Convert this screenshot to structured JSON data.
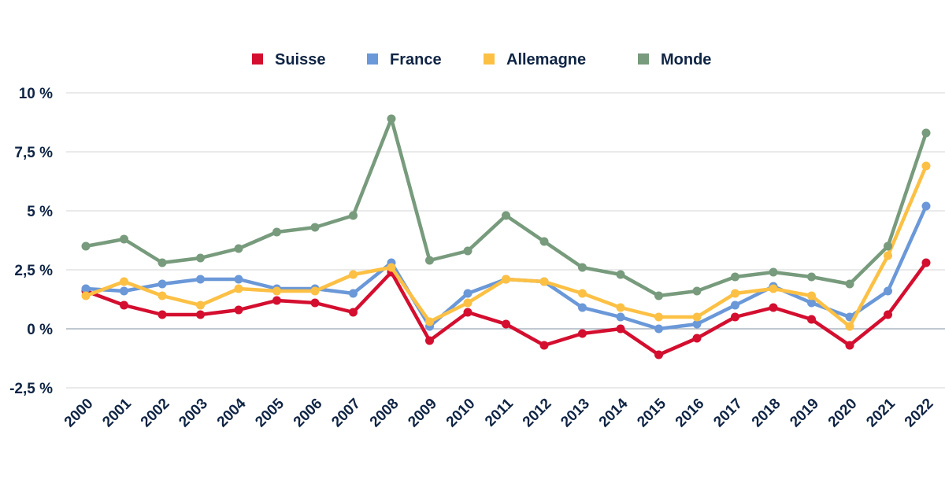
{
  "chart_data": {
    "type": "line",
    "title": "",
    "xlabel": "",
    "ylabel": "",
    "x": [
      "2000",
      "2001",
      "2002",
      "2003",
      "2004",
      "2005",
      "2006",
      "2007",
      "2008",
      "2009",
      "2010",
      "2011",
      "2012",
      "2013",
      "2014",
      "2015",
      "2016",
      "2017",
      "2018",
      "2019",
      "2020",
      "2021",
      "2022"
    ],
    "ylim": [
      -2.5,
      10
    ],
    "yticks": [
      -2.5,
      0,
      2.5,
      5,
      7.5,
      10
    ],
    "ytick_labels": [
      "-2,5 %",
      "0 %",
      "2,5 %",
      "5 %",
      "7,5 %",
      "10 %"
    ],
    "grid": true,
    "legend_position": "top",
    "series": [
      {
        "name": "Suisse",
        "color": "#d40e2f",
        "values": [
          1.6,
          1.0,
          0.6,
          0.6,
          0.8,
          1.2,
          1.1,
          0.7,
          2.4,
          -0.5,
          0.7,
          0.2,
          -0.7,
          -0.2,
          0.0,
          -1.1,
          -0.4,
          0.5,
          0.9,
          0.4,
          -0.7,
          0.6,
          2.8
        ]
      },
      {
        "name": "France",
        "color": "#6a98d8",
        "values": [
          1.7,
          1.6,
          1.9,
          2.1,
          2.1,
          1.7,
          1.7,
          1.5,
          2.8,
          0.1,
          1.5,
          2.1,
          2.0,
          0.9,
          0.5,
          0.0,
          0.2,
          1.0,
          1.8,
          1.1,
          0.5,
          1.6,
          5.2
        ]
      },
      {
        "name": "Allemagne",
        "color": "#fcc044",
        "values": [
          1.4,
          2.0,
          1.4,
          1.0,
          1.7,
          1.6,
          1.6,
          2.3,
          2.6,
          0.3,
          1.1,
          2.1,
          2.0,
          1.5,
          0.9,
          0.5,
          0.5,
          1.5,
          1.7,
          1.4,
          0.1,
          3.1,
          6.9
        ]
      },
      {
        "name": "Monde",
        "color": "#779b7c",
        "values": [
          3.5,
          3.8,
          2.8,
          3.0,
          3.4,
          4.1,
          4.3,
          4.8,
          8.9,
          2.9,
          3.3,
          4.8,
          3.7,
          2.6,
          2.3,
          1.4,
          1.6,
          2.2,
          2.4,
          2.2,
          1.9,
          3.5,
          8.3
        ]
      }
    ]
  }
}
